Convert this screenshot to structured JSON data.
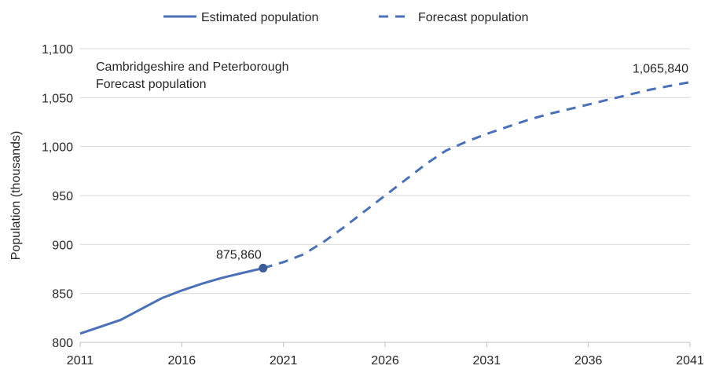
{
  "chart_data": {
    "type": "line",
    "title": "",
    "ylabel": "Population (thousands)",
    "xlabel": "",
    "ylim": [
      800,
      1100
    ],
    "xlim": [
      2011,
      2041
    ],
    "y_ticks": [
      "800",
      "850",
      "900",
      "950",
      "1,000",
      "1,050",
      "1,100"
    ],
    "x_ticks": [
      "2011",
      "2016",
      "2021",
      "2026",
      "2031",
      "2036",
      "2041"
    ],
    "grid": "horizontal",
    "legend_position": "top",
    "annotation_box": [
      "Cambridgeshire and Peterborough",
      "Forecast population"
    ],
    "colors": {
      "series": "#4a70b8",
      "text": "#262626",
      "grid": "#d9d9d9"
    },
    "series": [
      {
        "name": "Estimated population",
        "style": "solid",
        "x": [
          2011,
          2012,
          2013,
          2014,
          2015,
          2016,
          2017,
          2018,
          2019,
          2020
        ],
        "y": [
          809,
          816,
          823,
          834,
          845,
          853,
          860,
          866,
          871,
          875.86
        ]
      },
      {
        "name": "Forecast population",
        "style": "dashed",
        "x": [
          2020,
          2021,
          2022,
          2023,
          2024,
          2025,
          2026,
          2027,
          2028,
          2029,
          2030,
          2031,
          2032,
          2033,
          2034,
          2035,
          2036,
          2037,
          2038,
          2039,
          2040,
          2041
        ],
        "y": [
          875.86,
          882,
          890,
          903,
          918,
          934,
          950,
          966,
          982,
          996,
          1005,
          1013,
          1020,
          1027,
          1033,
          1038,
          1043,
          1048,
          1053,
          1058,
          1062,
          1065.84
        ]
      }
    ],
    "point_labels": [
      {
        "x": 2020,
        "y": 875.86,
        "label": "875,860",
        "marker": true,
        "side": "above-left"
      },
      {
        "x": 2041,
        "y": 1065.84,
        "label": "1,065,840",
        "marker": false,
        "side": "above-left"
      }
    ]
  }
}
